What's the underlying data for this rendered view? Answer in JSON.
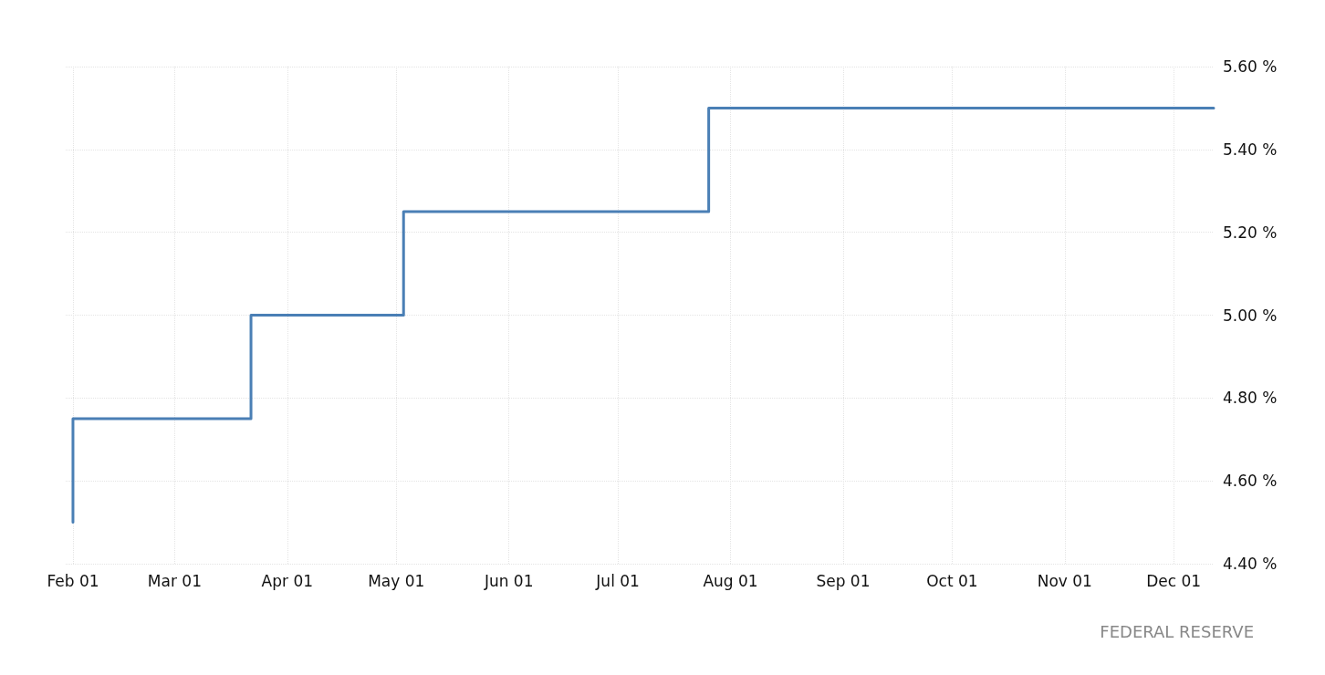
{
  "chart_data": {
    "type": "step",
    "x": [
      "--02-01",
      "--02-01",
      "--03-22",
      "--05-03",
      "--07-26",
      "--12-12"
    ],
    "series": [
      {
        "color": "#4a7fb5",
        "values": [
          4.5,
          4.75,
          5.0,
          5.25,
          5.5,
          5.5
        ]
      }
    ],
    "xlim": [
      "--01-30",
      "--12-12"
    ],
    "xticks": [
      {
        "value": "--02-01",
        "label": "Feb 01"
      },
      {
        "value": "--03-01",
        "label": "Mar 01"
      },
      {
        "value": "--04-01",
        "label": "Apr 01"
      },
      {
        "value": "--05-01",
        "label": "May 01"
      },
      {
        "value": "--06-01",
        "label": "Jun 01"
      },
      {
        "value": "--07-01",
        "label": "Jul 01"
      },
      {
        "value": "--08-01",
        "label": "Aug 01"
      },
      {
        "value": "--09-01",
        "label": "Sep 01"
      },
      {
        "value": "--10-01",
        "label": "Oct 01"
      },
      {
        "value": "--11-01",
        "label": "Nov 01"
      },
      {
        "value": "--12-01",
        "label": "Dec 01"
      }
    ],
    "ylim": [
      4.4,
      5.6
    ],
    "yticks": [
      {
        "value": 4.4,
        "label": "4.40 %"
      },
      {
        "value": 4.6,
        "label": "4.60 %"
      },
      {
        "value": 4.8,
        "label": "4.80 %"
      },
      {
        "value": 5.0,
        "label": "5.00 %"
      },
      {
        "value": 5.2,
        "label": "5.20 %"
      },
      {
        "value": 5.4,
        "label": "5.40 %"
      },
      {
        "value": 5.6,
        "label": "5.60 %"
      }
    ],
    "grid": true,
    "marker": "none",
    "line_style": "solid",
    "annotations": [
      "FEDERAL RESERVE"
    ]
  }
}
